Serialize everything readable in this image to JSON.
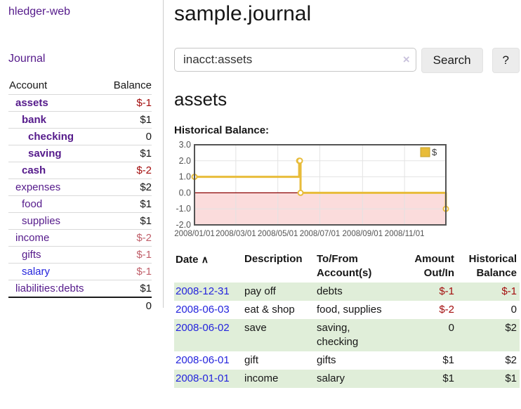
{
  "app": {
    "title": "hledger-web"
  },
  "sidebar": {
    "journal_label": "Journal",
    "accounts": {
      "header_account": "Account",
      "header_balance": "Balance",
      "rows": [
        {
          "name": "assets",
          "balance": "$-1",
          "name_class": "ind-1 bold",
          "bal_class": "bold neg"
        },
        {
          "name": "bank",
          "balance": "$1",
          "name_class": "ind-2 bold",
          "bal_class": "bold"
        },
        {
          "name": "checking",
          "balance": "0",
          "name_class": "ind-3 bold",
          "bal_class": "bold"
        },
        {
          "name": "saving",
          "balance": "$1",
          "name_class": "ind-3 bold",
          "bal_class": "bold"
        },
        {
          "name": "cash",
          "balance": "$-2",
          "name_class": "ind-2 bold",
          "bal_class": "bold neg"
        },
        {
          "name": "expenses",
          "balance": "$2",
          "name_class": "ind-1",
          "bal_class": ""
        },
        {
          "name": "food",
          "balance": "$1",
          "name_class": "ind-2",
          "bal_class": ""
        },
        {
          "name": "supplies",
          "balance": "$1",
          "name_class": "ind-2",
          "bal_class": ""
        },
        {
          "name": "income",
          "balance": "$-2",
          "name_class": "ind-1",
          "bal_class": "neg-soft"
        },
        {
          "name": "gifts",
          "balance": "$-1",
          "name_class": "ind-2",
          "bal_class": "neg-soft"
        },
        {
          "name": "salary",
          "balance": "$-1",
          "name_class": "ind-2 blue",
          "bal_class": "neg-soft"
        },
        {
          "name": "liabilities:debts",
          "balance": "$1",
          "name_class": "ind-1",
          "bal_class": ""
        }
      ],
      "total": "0"
    }
  },
  "main": {
    "title": "sample.journal",
    "search": {
      "value": "inacct:assets",
      "clear_icon": "×",
      "button_label": "Search",
      "help_label": "?"
    },
    "section_title": "assets",
    "chart_label": "Historical Balance:",
    "register": {
      "headers": {
        "date": "Date",
        "sort_icon": "∧",
        "description": "Description",
        "to_from": "To/From\nAccount(s)",
        "amount": "Amount\nOut/In",
        "balance": "Historical\nBalance"
      },
      "rows": [
        {
          "date": "2008-12-31",
          "description": "pay off",
          "to_from": "debts",
          "amount": "$-1",
          "balance": "$-1",
          "amount_class": "neg",
          "balance_class": "neg",
          "row_class": "striped"
        },
        {
          "date": "2008-06-03",
          "description": "eat & shop",
          "to_from": "food, supplies",
          "amount": "$-2",
          "balance": "0",
          "amount_class": "neg",
          "balance_class": "",
          "row_class": ""
        },
        {
          "date": "2008-06-02",
          "description": "save",
          "to_from": "saving,\nchecking",
          "amount": "0",
          "balance": "$2",
          "amount_class": "",
          "balance_class": "",
          "row_class": "striped"
        },
        {
          "date": "2008-06-01",
          "description": "gift",
          "to_from": "gifts",
          "amount": "$1",
          "balance": "$2",
          "amount_class": "",
          "balance_class": "",
          "row_class": ""
        },
        {
          "date": "2008-01-01",
          "description": "income",
          "to_from": "salary",
          "amount": "$1",
          "balance": "$1",
          "amount_class": "",
          "balance_class": "",
          "row_class": "striped"
        }
      ]
    }
  },
  "chart_data": {
    "type": "line",
    "style": "step",
    "title": "Historical Balance:",
    "series": [
      {
        "name": "$",
        "color": "#e8bc3a",
        "points": [
          [
            "2008-01-01",
            1
          ],
          [
            "2008-06-01",
            2
          ],
          [
            "2008-06-02",
            2
          ],
          [
            "2008-06-03",
            0
          ],
          [
            "2008-12-31",
            -1
          ]
        ]
      }
    ],
    "x_range": [
      "2008-01-01",
      "2008-12-31"
    ],
    "ylim": [
      -2,
      3
    ],
    "y_ticks": [
      "3.0",
      "2.0",
      "1.0",
      "0.0",
      "-1.0",
      "-2.0"
    ],
    "x_ticks": [
      "2008/01/01",
      "2008/03/01",
      "2008/05/01",
      "2008/07/01",
      "2008/09/01",
      "2008/11/01"
    ],
    "grid": true,
    "legend_position": "top-right",
    "zero_line_color": "#8b0000",
    "negative_region_color": "#fbdcdc",
    "grid_color": "#e3e3e3",
    "border_color": "#545454",
    "tick_color": "#545454"
  }
}
